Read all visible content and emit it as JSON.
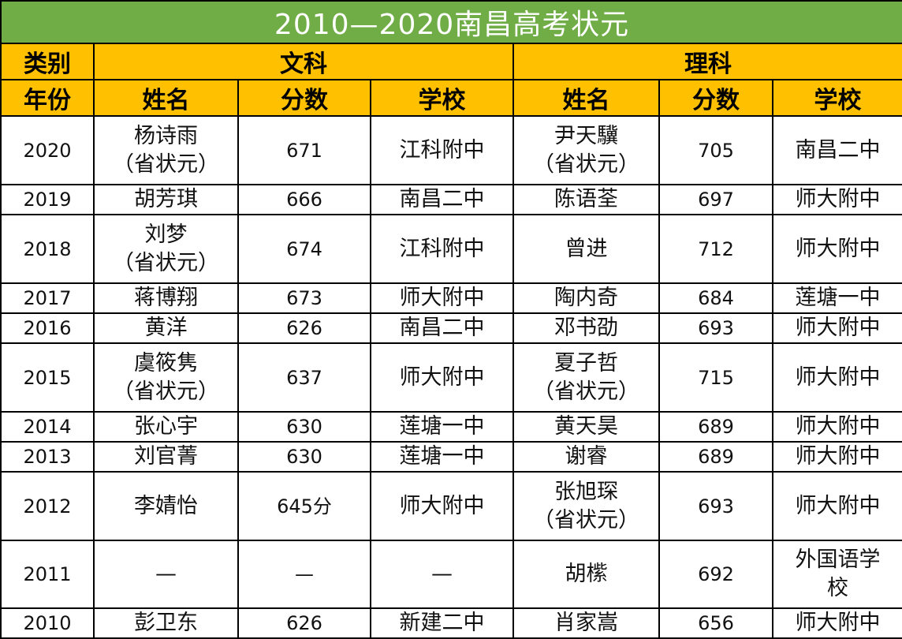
{
  "title": "2010—2020南昌高考状元",
  "header": {
    "category_label": "类别",
    "year_label": "年份",
    "arts_label": "文科",
    "science_label": "理科",
    "arts_name": "姓名",
    "arts_score": "分数",
    "arts_school": "学校",
    "sci_name": "姓名",
    "sci_score": "分数",
    "sci_school": "学校"
  },
  "colors": {
    "title_bg": "#70ad47",
    "header_bg": "#ffc000"
  },
  "rows": [
    {
      "year": "2020",
      "arts_name": "杨诗雨",
      "arts_note": "（省状元）",
      "arts_score": "671",
      "arts_school": "江科附中",
      "sci_name": "尹天驥",
      "sci_note": "（省状元）",
      "sci_score": "705",
      "sci_school": "南昌二中",
      "sci_school_2": ""
    },
    {
      "year": "2019",
      "arts_name": "胡芳琪",
      "arts_note": "",
      "arts_score": "666",
      "arts_school": "南昌二中",
      "sci_name": "陈语荃",
      "sci_note": "",
      "sci_score": "697",
      "sci_school": "师大附中",
      "sci_school_2": ""
    },
    {
      "year": "2018",
      "arts_name": "刘梦",
      "arts_note": "（省状元）",
      "arts_score": "674",
      "arts_school": "江科附中",
      "sci_name": "曾进",
      "sci_note": "",
      "sci_score": "712",
      "sci_school": "师大附中",
      "sci_school_2": ""
    },
    {
      "year": "2017",
      "arts_name": "蒋博翔",
      "arts_note": "",
      "arts_score": "673",
      "arts_school": "师大附中",
      "sci_name": "陶内奇",
      "sci_note": "",
      "sci_score": "684",
      "sci_school": "莲塘一中",
      "sci_school_2": ""
    },
    {
      "year": "2016",
      "arts_name": "黄洋",
      "arts_note": "",
      "arts_score": "626",
      "arts_school": "南昌二中",
      "sci_name": "邓书劭",
      "sci_note": "",
      "sci_score": "693",
      "sci_school": "师大附中",
      "sci_school_2": ""
    },
    {
      "year": "2015",
      "arts_name": "虞筱隽",
      "arts_note": "（省状元）",
      "arts_score": "637",
      "arts_school": "师大附中",
      "sci_name": "夏子哲",
      "sci_note": "（省状元）",
      "sci_score": "715",
      "sci_school": "师大附中",
      "sci_school_2": ""
    },
    {
      "year": "2014",
      "arts_name": "张心宇",
      "arts_note": "",
      "arts_score": "630",
      "arts_school": "莲塘一中",
      "sci_name": "黄天昊",
      "sci_note": "",
      "sci_score": "689",
      "sci_school": "师大附中",
      "sci_school_2": ""
    },
    {
      "year": "2013",
      "arts_name": "刘官菁",
      "arts_note": "",
      "arts_score": "630",
      "arts_school": "莲塘一中",
      "sci_name": "谢睿",
      "sci_note": "",
      "sci_score": "689",
      "sci_school": "师大附中",
      "sci_school_2": ""
    },
    {
      "year": "2012",
      "arts_name": "李婧怡",
      "arts_note": "",
      "arts_score": "645分",
      "arts_school": "师大附中",
      "sci_name": "张旭琛",
      "sci_note": "（省状元）",
      "sci_score": "693",
      "sci_school": "师大附中",
      "sci_school_2": ""
    },
    {
      "year": "2011",
      "arts_name": "—",
      "arts_note": "",
      "arts_score": "—",
      "arts_school": "—",
      "sci_name": "胡橴",
      "sci_note": "",
      "sci_score": "692",
      "sci_school": "外国语学",
      "sci_school_2": "校"
    },
    {
      "year": "2010",
      "arts_name": "彭卫东",
      "arts_note": "",
      "arts_score": "626",
      "arts_school": "新建二中",
      "sci_name": "肖家嵩",
      "sci_note": "",
      "sci_score": "656",
      "sci_school": "师大附中",
      "sci_school_2": ""
    }
  ]
}
